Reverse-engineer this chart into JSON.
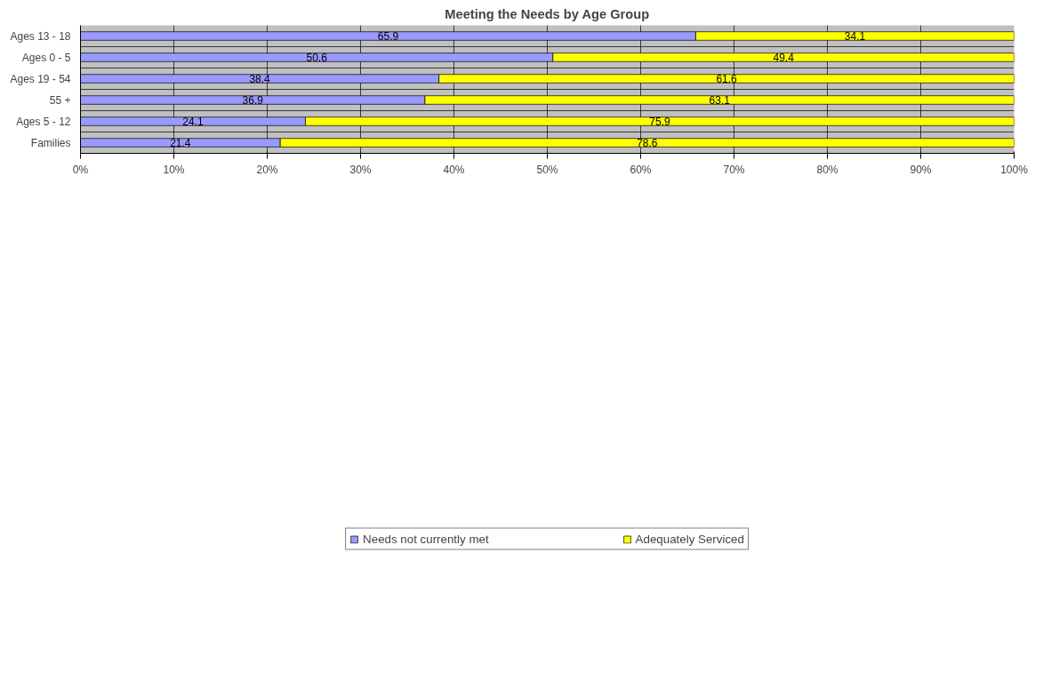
{
  "chart_data": {
    "type": "bar",
    "orientation": "horizontal",
    "stacked": true,
    "title": "Meeting the Needs by Age Group",
    "categories": [
      "Ages 13 - 18",
      "Ages 0 - 5",
      "Ages 19 - 54",
      "55 +",
      "Ages 5 - 12",
      "Families"
    ],
    "series": [
      {
        "name": "Needs not currently met",
        "color": "#9999ff",
        "values": [
          65.9,
          50.6,
          38.4,
          36.9,
          24.1,
          21.4
        ]
      },
      {
        "name": "Adequately Serviced",
        "color": "#ffff00",
        "values": [
          34.1,
          49.4,
          61.6,
          63.1,
          75.9,
          78.6
        ]
      }
    ],
    "xlim": [
      0,
      100
    ],
    "xticks": [
      {
        "value": 0,
        "label": "0%"
      },
      {
        "value": 10,
        "label": "10%"
      },
      {
        "value": 20,
        "label": "20%"
      },
      {
        "value": 30,
        "label": "30%"
      },
      {
        "value": 40,
        "label": "40%"
      },
      {
        "value": 50,
        "label": "50%"
      },
      {
        "value": 60,
        "label": "60%"
      },
      {
        "value": 70,
        "label": "70%"
      },
      {
        "value": 80,
        "label": "80%"
      },
      {
        "value": 90,
        "label": "90%"
      },
      {
        "value": 100,
        "label": "100%"
      }
    ],
    "data_labels": true,
    "grid": true,
    "legend": "bottom"
  }
}
